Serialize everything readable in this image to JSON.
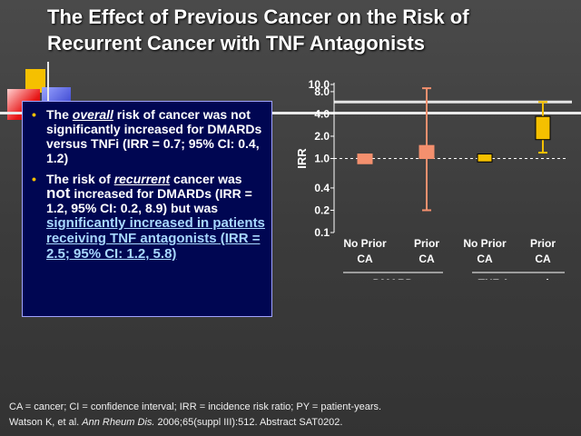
{
  "slide": {
    "title": "The Effect of Previous Cancer on the Risk of\nRecurrent Cancer with TNF Antagonists"
  },
  "bullets": {
    "b1": {
      "pre": "The ",
      "em": "overall",
      "post": " risk of cancer was not significantly increased for DMARDs versus TNFi (IRR = 0.7; 95% CI: 0.4, 1.2)"
    },
    "b2": {
      "pre": "The risk of ",
      "em": "recurrent",
      "mid": " cancer was ",
      "not": "not",
      "post": " increased for DMARDs (IRR = 1.2, 95% CI: 0.2, 8.9) but was ",
      "highlight": "significantly increased in patients receiving TNF antagonists (IRR = 2.5; 95% CI: 1.2, 5.8)"
    }
  },
  "footer": {
    "line1": "CA = cancer; CI = confidence interval; IRR = incidence risk ratio; PY = patient-years.",
    "cite_pre": "Watson K, et al. ",
    "cite_journal": "Ann Rheum Dis.",
    "cite_post": " 2006;65(suppl III):512.  Abstract SAT0202."
  },
  "chart_data": {
    "type": "box",
    "ylabel": "IRR",
    "yscale": "log",
    "ylim": [
      0.1,
      10.0
    ],
    "yticks": [
      "10.0",
      "8.0",
      "4.0",
      "2.0",
      "1.0",
      "0.4",
      "0.2",
      "0.1"
    ],
    "reference_lines": [
      {
        "y": 1.0,
        "style": "dashed",
        "color": "#ffffff"
      },
      {
        "y": 5.8,
        "style": "solid",
        "color": "#e6e6e6"
      }
    ],
    "groups": [
      {
        "label": "DMARD",
        "categories": [
          "No Prior CA",
          "Prior CA"
        ]
      },
      {
        "label": "TNF Antagonist",
        "categories": [
          "No Prior CA",
          "Prior CA"
        ]
      }
    ],
    "points": [
      {
        "group": "DMARD",
        "category": "No Prior CA",
        "low": 0.85,
        "high": 1.15,
        "ci_low": null,
        "ci_high": null,
        "color": "#f4906e"
      },
      {
        "group": "DMARD",
        "category": "Prior CA",
        "low": 1.0,
        "high": 1.5,
        "ci_low": 0.2,
        "ci_high": 8.9,
        "color": "#f4906e"
      },
      {
        "group": "TNF Antagonist",
        "category": "No Prior CA",
        "low": 0.9,
        "high": 1.15,
        "ci_low": null,
        "ci_high": null,
        "color": "#f5c000"
      },
      {
        "group": "TNF Antagonist",
        "category": "Prior CA",
        "low": 1.8,
        "high": 3.7,
        "ci_low": 1.2,
        "ci_high": 5.8,
        "color": "#f5c000"
      }
    ]
  }
}
